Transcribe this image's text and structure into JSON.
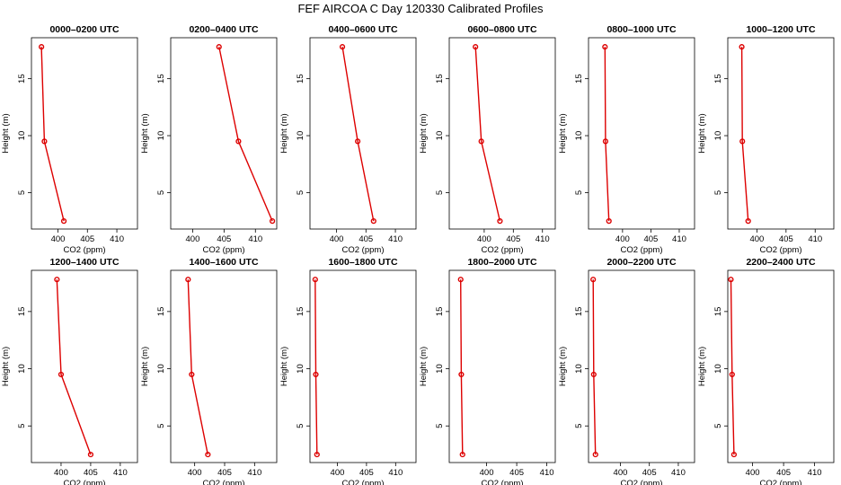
{
  "title": "FEF AIRCOA C  Day 120330  Calibrated Profiles",
  "chart_data": {
    "type": "line",
    "orientation": "vertical-profile",
    "xlabel": "CO2 (ppm)",
    "ylabel": "Height (m)",
    "x_ticks": [
      400,
      405,
      410
    ],
    "y_ticks": [
      5,
      10,
      15
    ],
    "ylim": [
      1.8,
      18.6
    ],
    "series_color": "#dd0000",
    "panels": [
      {
        "title": "0000–0200 UTC",
        "xlim": [
          395.5,
          413.5
        ],
        "points": [
          {
            "x": 401.0,
            "y": 2.5
          },
          {
            "x": 397.7,
            "y": 9.5
          },
          {
            "x": 397.2,
            "y": 17.8
          }
        ]
      },
      {
        "title": "0200–0400 UTC",
        "xlim": [
          396.5,
          413.4
        ],
        "points": [
          {
            "x": 412.7,
            "y": 2.5
          },
          {
            "x": 407.3,
            "y": 9.5
          },
          {
            "x": 404.2,
            "y": 17.8
          }
        ]
      },
      {
        "title": "0400–0600 UTC",
        "xlim": [
          395.5,
          413.5
        ],
        "points": [
          {
            "x": 406.3,
            "y": 2.5
          },
          {
            "x": 403.6,
            "y": 9.5
          },
          {
            "x": 401.0,
            "y": 17.8
          }
        ]
      },
      {
        "title": "0600–0800 UTC",
        "xlim": [
          394.0,
          412.2
        ],
        "points": [
          {
            "x": 402.7,
            "y": 2.5
          },
          {
            "x": 399.5,
            "y": 9.5
          },
          {
            "x": 398.5,
            "y": 17.8
          }
        ]
      },
      {
        "title": "0800–1000 UTC",
        "xlim": [
          394.0,
          412.7
        ],
        "points": [
          {
            "x": 397.6,
            "y": 2.5
          },
          {
            "x": 397.0,
            "y": 9.5
          },
          {
            "x": 396.9,
            "y": 17.8
          }
        ]
      },
      {
        "title": "1000–1200 UTC",
        "xlim": [
          395.0,
          413.2
        ],
        "points": [
          {
            "x": 398.5,
            "y": 2.5
          },
          {
            "x": 397.5,
            "y": 9.5
          },
          {
            "x": 397.4,
            "y": 17.8
          }
        ]
      },
      {
        "title": "1200–1400 UTC",
        "xlim": [
          395.0,
          412.9
        ],
        "points": [
          {
            "x": 405.0,
            "y": 2.5
          },
          {
            "x": 400.0,
            "y": 9.5
          },
          {
            "x": 399.3,
            "y": 17.8
          }
        ]
      },
      {
        "title": "1400–1600 UTC",
        "xlim": [
          396.0,
          413.7
        ],
        "points": [
          {
            "x": 402.2,
            "y": 2.5
          },
          {
            "x": 399.5,
            "y": 9.5
          },
          {
            "x": 398.9,
            "y": 17.8
          }
        ]
      },
      {
        "title": "1600–1800 UTC",
        "xlim": [
          395.3,
          413.5
        ],
        "points": [
          {
            "x": 396.5,
            "y": 2.5
          },
          {
            "x": 396.3,
            "y": 9.5
          },
          {
            "x": 396.2,
            "y": 17.8
          }
        ]
      },
      {
        "title": "1800–2000 UTC",
        "xlim": [
          393.8,
          411.4
        ],
        "points": [
          {
            "x": 396.0,
            "y": 2.5
          },
          {
            "x": 395.8,
            "y": 9.5
          },
          {
            "x": 395.7,
            "y": 17.8
          }
        ]
      },
      {
        "title": "2000–2200 UTC",
        "xlim": [
          394.5,
          412.8
        ],
        "points": [
          {
            "x": 395.7,
            "y": 2.5
          },
          {
            "x": 395.4,
            "y": 9.5
          },
          {
            "x": 395.3,
            "y": 17.8
          }
        ]
      },
      {
        "title": "2200–2400 UTC",
        "xlim": [
          396.0,
          413.1
        ],
        "points": [
          {
            "x": 397.0,
            "y": 2.5
          },
          {
            "x": 396.7,
            "y": 9.5
          },
          {
            "x": 396.5,
            "y": 17.8
          }
        ]
      }
    ]
  }
}
